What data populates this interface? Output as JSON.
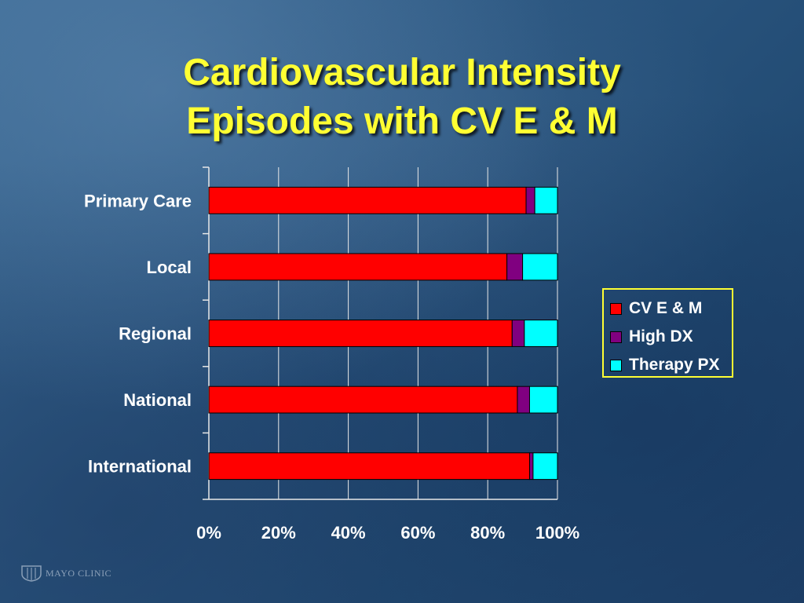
{
  "title_line1": "Cardiovascular Intensity",
  "title_line2": "Episodes with CV E & M",
  "logo_text": "MAYO CLINIC",
  "chart_data": {
    "type": "bar",
    "orientation": "horizontal",
    "stacked": "percent",
    "categories": [
      "Primary Care",
      "Local",
      "Regional",
      "National",
      "International"
    ],
    "series": [
      {
        "name": "CV E & M",
        "color": "#ff0000",
        "values": [
          91,
          85.5,
          87,
          88.5,
          92
        ]
      },
      {
        "name": "High DX",
        "color": "#800080",
        "values": [
          2.5,
          4.5,
          3.5,
          3.5,
          1
        ]
      },
      {
        "name": "Therapy PX",
        "color": "#00ffff",
        "values": [
          6.5,
          10,
          9.5,
          8,
          7
        ]
      }
    ],
    "x_ticks": [
      "0%",
      "20%",
      "40%",
      "60%",
      "80%",
      "100%"
    ],
    "xlim": [
      0,
      100
    ],
    "grid": "vertical",
    "legend_position": "right"
  }
}
